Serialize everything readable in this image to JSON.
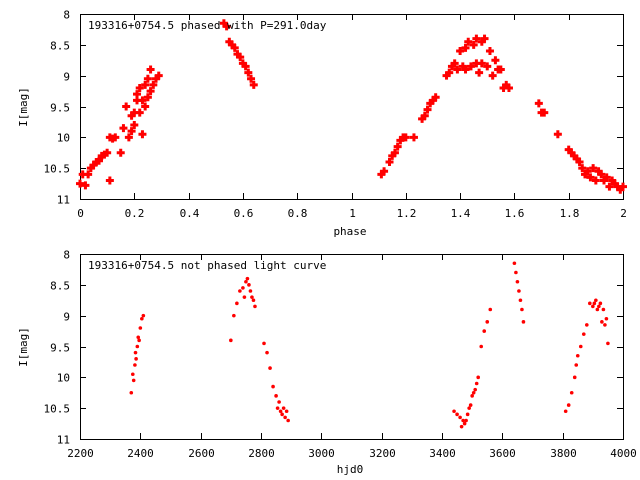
{
  "chart_data": [
    {
      "type": "scatter",
      "title": "193316+0754.5 phased with P=291.0day",
      "xlabel": "phase",
      "ylabel": "I[mag]",
      "xlim": [
        0,
        2
      ],
      "ylim": [
        8,
        11
      ],
      "y_inverted": true,
      "grid": false,
      "xticks": [
        "0",
        "0.2",
        "0.4",
        "0.6",
        "0.8",
        "1",
        "1.2",
        "1.4",
        "1.6",
        "1.8",
        "2"
      ],
      "yticks": [
        "8",
        "8.5",
        "9",
        "9.5",
        "10",
        "10.5",
        "11"
      ],
      "marker": "filled-plus",
      "color": "#ff0000",
      "series": [
        {
          "x": [
            0.0,
            0.01,
            0.02,
            0.03,
            0.04,
            0.05,
            0.06,
            0.07,
            0.08,
            0.09,
            0.1,
            0.11,
            0.11,
            0.12,
            0.13,
            0.15,
            0.16,
            0.17,
            0.18,
            0.19,
            0.19,
            0.2,
            0.2,
            0.21,
            0.21,
            0.22,
            0.22,
            0.23,
            0.23,
            0.24,
            0.24,
            0.25,
            0.25,
            0.26,
            0.26,
            0.27,
            0.28,
            0.29,
            0.53,
            0.54,
            0.55,
            0.56,
            0.57,
            0.58,
            0.59,
            0.6,
            0.61,
            0.62,
            0.63,
            0.64,
            1.11,
            1.12,
            1.14,
            1.15,
            1.16,
            1.17,
            1.18,
            1.19,
            1.2,
            1.23,
            1.26,
            1.27,
            1.28,
            1.29,
            1.3,
            1.31,
            1.35,
            1.36,
            1.37,
            1.38,
            1.39,
            1.4,
            1.41,
            1.42,
            1.42,
            1.43,
            1.44,
            1.45,
            1.46,
            1.46,
            1.47,
            1.48,
            1.48,
            1.49,
            1.5,
            1.51,
            1.52,
            1.53,
            1.54,
            1.55,
            1.56,
            1.57,
            1.58,
            1.69,
            1.7,
            1.71,
            1.76,
            1.8,
            1.81,
            1.82,
            1.83,
            1.84,
            1.85,
            1.86,
            1.87,
            1.88,
            1.89,
            1.9,
            1.91,
            1.92,
            1.93,
            1.94,
            1.95,
            1.96,
            1.97,
            1.98,
            1.99,
            2.0
          ],
          "y": [
            10.75,
            10.6,
            10.78,
            10.6,
            10.5,
            10.45,
            10.4,
            10.38,
            10.3,
            10.28,
            10.25,
            10.7,
            10.0,
            10.02,
            10.0,
            10.25,
            9.85,
            9.5,
            10.0,
            9.9,
            9.65,
            9.8,
            9.6,
            9.4,
            9.3,
            9.6,
            9.2,
            9.95,
            9.4,
            9.15,
            9.5,
            9.35,
            9.05,
            9.25,
            8.9,
            9.15,
            9.05,
            9.0,
            8.15,
            8.2,
            8.45,
            8.5,
            8.55,
            8.65,
            8.7,
            8.8,
            8.85,
            8.95,
            9.05,
            9.15,
            10.6,
            10.55,
            10.4,
            10.3,
            10.25,
            10.15,
            10.05,
            10.0,
            10.0,
            10.0,
            9.7,
            9.65,
            9.55,
            9.45,
            9.4,
            9.35,
            9.0,
            8.95,
            8.85,
            8.8,
            8.9,
            8.6,
            8.85,
            8.55,
            8.9,
            8.45,
            8.85,
            8.5,
            8.8,
            8.4,
            8.95,
            8.8,
            8.45,
            8.4,
            8.85,
            8.6,
            9.0,
            8.75,
            8.9,
            8.9,
            9.2,
            9.15,
            9.2,
            9.45,
            9.6,
            9.6,
            9.95,
            10.2,
            10.25,
            10.3,
            10.35,
            10.4,
            10.5,
            10.6,
            10.55,
            10.65,
            10.5,
            10.7,
            10.55,
            10.6,
            10.7,
            10.65,
            10.8,
            10.7,
            10.75,
            10.8,
            10.85,
            10.8
          ]
        }
      ]
    },
    {
      "type": "scatter",
      "title": "193316+0754.5 not phased light curve",
      "xlabel": "hjd0",
      "ylabel": "I[mag]",
      "xlim": [
        2200,
        4000
      ],
      "ylim": [
        8,
        11
      ],
      "y_inverted": true,
      "grid": false,
      "xticks": [
        "2200",
        "2400",
        "2600",
        "2800",
        "3000",
        "3200",
        "3400",
        "3600",
        "3800",
        "4000"
      ],
      "yticks": [
        "8",
        "8.5",
        "9",
        "9.5",
        "10",
        "10.5",
        "11"
      ],
      "marker": "dot",
      "color": "#ff0000",
      "series": [
        {
          "x": [
            2370,
            2375,
            2378,
            2382,
            2384,
            2386,
            2390,
            2393,
            2396,
            2400,
            2405,
            2410,
            2700,
            2710,
            2720,
            2730,
            2740,
            2745,
            2750,
            2755,
            2760,
            2765,
            2770,
            2775,
            2780,
            2810,
            2820,
            2830,
            2840,
            2850,
            2855,
            2860,
            2865,
            2870,
            2875,
            2880,
            2885,
            2890,
            3440,
            3450,
            3460,
            3465,
            3470,
            3475,
            3480,
            3485,
            3490,
            3495,
            3500,
            3505,
            3510,
            3515,
            3520,
            3530,
            3540,
            3550,
            3560,
            3640,
            3645,
            3650,
            3655,
            3660,
            3665,
            3670,
            3810,
            3820,
            3830,
            3840,
            3845,
            3850,
            3860,
            3870,
            3880,
            3890,
            3900,
            3905,
            3910,
            3915,
            3920,
            3925,
            3930,
            3935,
            3940,
            3945,
            3950
          ],
          "y": [
            10.25,
            9.95,
            10.05,
            9.8,
            9.6,
            9.7,
            9.5,
            9.35,
            9.4,
            9.2,
            9.05,
            9.0,
            9.4,
            9.0,
            8.8,
            8.6,
            8.55,
            8.7,
            8.45,
            8.4,
            8.5,
            8.6,
            8.7,
            8.75,
            8.85,
            9.45,
            9.6,
            9.85,
            10.15,
            10.3,
            10.5,
            10.4,
            10.55,
            10.6,
            10.5,
            10.65,
            10.55,
            10.7,
            10.55,
            10.6,
            10.65,
            10.8,
            10.7,
            10.75,
            10.7,
            10.6,
            10.5,
            10.45,
            10.3,
            10.25,
            10.2,
            10.1,
            10.0,
            9.5,
            9.25,
            9.1,
            8.9,
            8.15,
            8.3,
            8.45,
            8.6,
            8.75,
            8.9,
            9.1,
            10.55,
            10.45,
            10.25,
            10.0,
            9.8,
            9.65,
            9.5,
            9.3,
            9.15,
            8.8,
            8.85,
            8.8,
            8.75,
            8.9,
            8.85,
            8.8,
            9.1,
            8.9,
            9.15,
            9.05,
            9.45
          ]
        }
      ]
    }
  ]
}
